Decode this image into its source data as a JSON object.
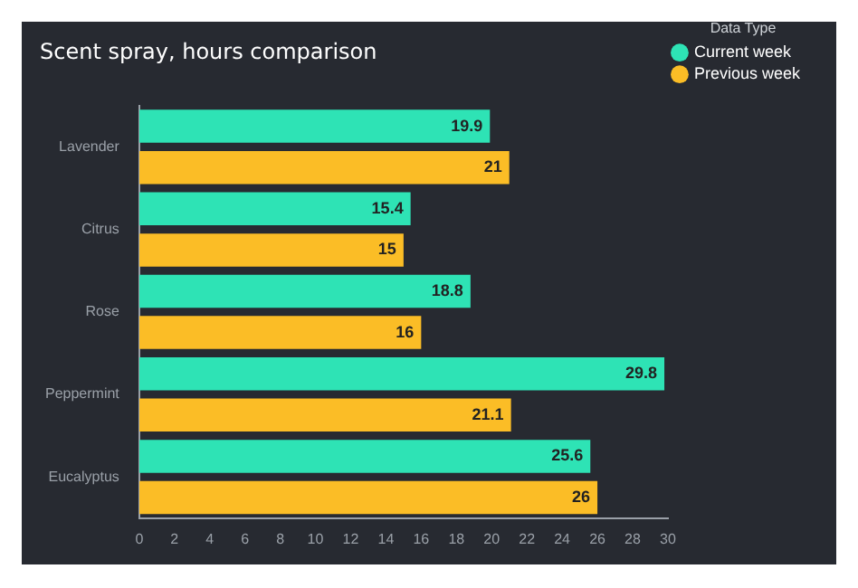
{
  "chart_data": {
    "type": "bar",
    "orientation": "horizontal",
    "title": "Scent spray, hours comparison",
    "legend_title": "Data Type",
    "categories": [
      "Lavender",
      "Citrus",
      "Rose",
      "Peppermint",
      "Eucalyptus"
    ],
    "series": [
      {
        "name": "Current week",
        "color": "#2ee3b5",
        "values": [
          19.9,
          15.4,
          18.8,
          29.8,
          25.6
        ]
      },
      {
        "name": "Previous week",
        "color": "#fbbd26",
        "values": [
          21,
          15,
          16,
          21.1,
          26
        ]
      }
    ],
    "xlim": [
      0,
      30
    ],
    "xticks": [
      0,
      2,
      4,
      6,
      8,
      10,
      12,
      14,
      16,
      18,
      20,
      22,
      24,
      26,
      28,
      30
    ],
    "grid": false,
    "legend": "top right",
    "data_labels": true
  }
}
